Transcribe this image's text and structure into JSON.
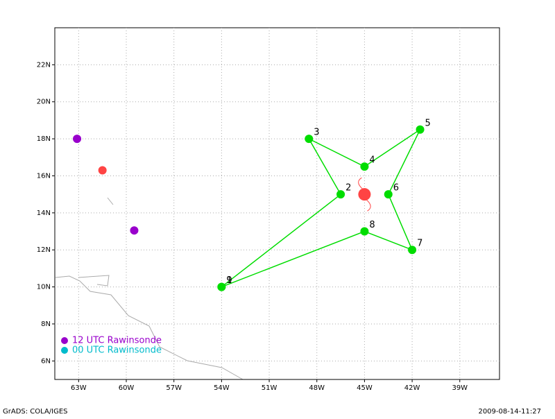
{
  "chart_data": {
    "type": "track",
    "xlim": [
      -64.5,
      -36.5
    ],
    "ylim": [
      5,
      24
    ],
    "xticks": [
      {
        "value": -63,
        "label": "63W"
      },
      {
        "value": -60,
        "label": "60W"
      },
      {
        "value": -57,
        "label": "57W"
      },
      {
        "value": -54,
        "label": "54W"
      },
      {
        "value": -51,
        "label": "51W"
      },
      {
        "value": -48,
        "label": "48W"
      },
      {
        "value": -45,
        "label": "45W"
      },
      {
        "value": -42,
        "label": "42W"
      },
      {
        "value": -39,
        "label": "39W"
      }
    ],
    "yticks": [
      {
        "value": 6,
        "label": "6N"
      },
      {
        "value": 8,
        "label": "8N"
      },
      {
        "value": 10,
        "label": "10N"
      },
      {
        "value": 12,
        "label": "12N"
      },
      {
        "value": 14,
        "label": "14N"
      },
      {
        "value": 16,
        "label": "16N"
      },
      {
        "value": 18,
        "label": "18N"
      },
      {
        "value": 20,
        "label": "20N"
      },
      {
        "value": 22,
        "label": "22N"
      }
    ],
    "grid": true,
    "track": {
      "color": "#00dd00",
      "x": [
        -54,
        -46.5,
        -48.5,
        -45,
        -41.5,
        -43.5,
        -42,
        -45,
        -54
      ],
      "y": [
        10,
        15,
        18,
        16.5,
        18.5,
        15,
        12,
        13,
        10
      ],
      "labels": [
        "1",
        "2",
        "3",
        "4",
        "5",
        "6",
        "7",
        "8",
        "9"
      ]
    },
    "storm": {
      "color": "#ff4444",
      "x": -45,
      "y": 15
    },
    "markers": {
      "color": "#ff4444",
      "x": [
        -61.5
      ],
      "y": [
        16.3
      ]
    },
    "series": [
      {
        "name": "12 UTC Rawinsonde",
        "color": "#9900cc",
        "x": [
          -63.1,
          -59.5
        ],
        "y": [
          18,
          13.05
        ]
      },
      {
        "name": "00 UTC Rawinsonde",
        "color": "#00bbcc",
        "x": [],
        "y": []
      }
    ],
    "footer_left": "GrADS: COLA/IGES",
    "footer_right": "2009-08-14-11:27"
  }
}
